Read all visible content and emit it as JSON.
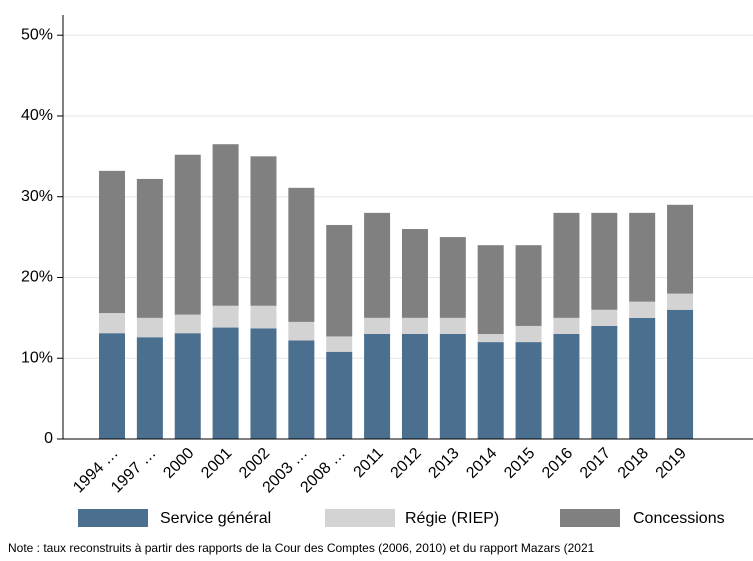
{
  "chart_data": {
    "type": "stacked_bar",
    "categories": [
      "1994 …",
      "1997 …",
      "2000",
      "2001",
      "2002",
      "2003 …",
      "2008 …",
      "2011",
      "2012",
      "2013",
      "2014",
      "2015",
      "2016",
      "2017",
      "2018",
      "2019"
    ],
    "series": [
      {
        "name": "Service général",
        "color": "#4a6f8f",
        "values": [
          13.1,
          12.6,
          13.1,
          13.8,
          13.7,
          12.2,
          10.8,
          13,
          13,
          13,
          12,
          12,
          13,
          14,
          15,
          16
        ]
      },
      {
        "name": "Régie (RIEP)",
        "color": "#d3d3d3",
        "values": [
          2.5,
          2.4,
          2.3,
          2.7,
          2.8,
          2.3,
          1.9,
          2,
          2,
          2,
          1,
          2,
          2,
          2,
          2,
          2
        ]
      },
      {
        "name": "Concessions",
        "color": "#808080",
        "values": [
          17.6,
          17.2,
          19.8,
          20.0,
          18.5,
          16.6,
          13.8,
          13,
          11,
          10,
          11,
          10,
          13,
          12,
          11,
          11
        ]
      }
    ],
    "ylim": [
      0,
      52.5
    ],
    "yticks": [
      0,
      {
        "value": 10,
        "label": "10%"
      },
      {
        "value": 20,
        "label": "20%"
      },
      {
        "value": 30,
        "label": "30%"
      },
      {
        "value": 40,
        "label": "40%"
      },
      {
        "value": 50,
        "label": "50%"
      }
    ],
    "grid": true,
    "legend": "bottom",
    "note": "Note : taux reconstruits à partir des rapports de la Cour des Comptes (2006, 2010) et du rapport Mazars (2021"
  }
}
